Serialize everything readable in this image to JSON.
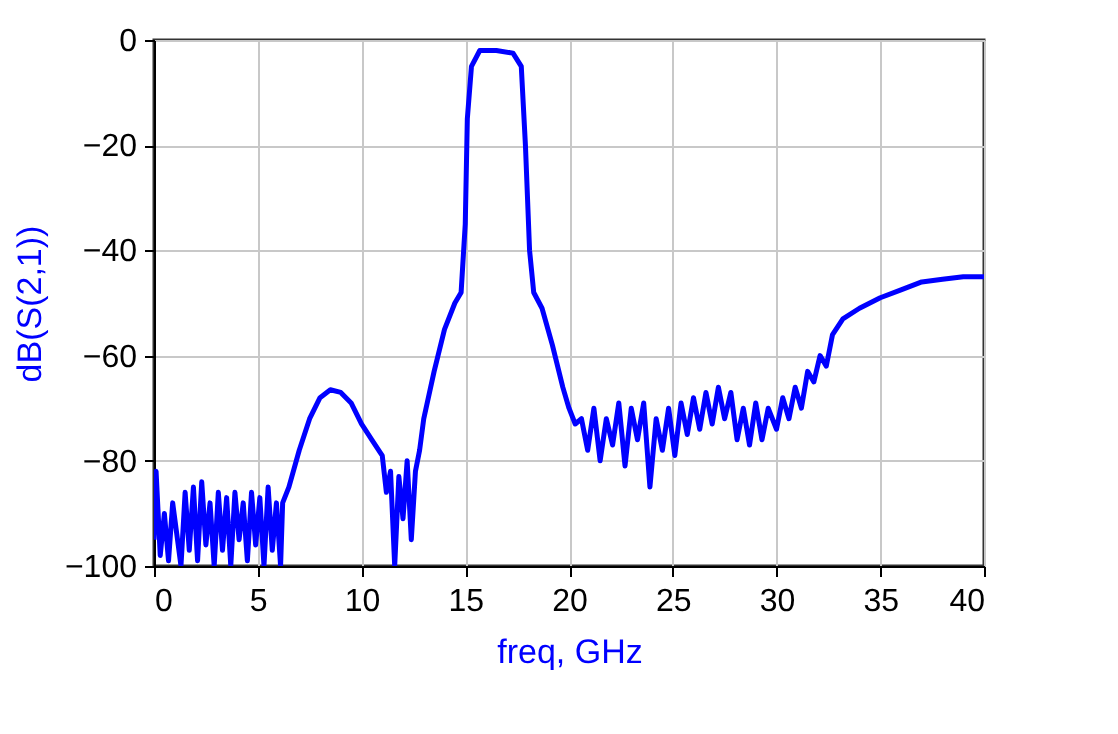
{
  "chart_data": {
    "type": "line",
    "xlabel": "freq, GHz",
    "ylabel": "dB(S(2,1))",
    "xlim": [
      0,
      40
    ],
    "ylim": [
      -100,
      0
    ],
    "xticks": [
      0,
      5,
      10,
      15,
      20,
      25,
      30,
      35,
      40
    ],
    "yticks": [
      -100,
      -80,
      -60,
      -40,
      -20,
      0
    ],
    "grid": true,
    "x": [
      0,
      0.1,
      0.3,
      0.5,
      0.7,
      0.9,
      1.1,
      1.3,
      1.5,
      1.7,
      1.9,
      2.1,
      2.3,
      2.5,
      2.7,
      2.9,
      3.1,
      3.3,
      3.5,
      3.7,
      3.9,
      4.1,
      4.3,
      4.5,
      4.7,
      4.9,
      5.1,
      5.3,
      5.5,
      5.7,
      5.9,
      6.1,
      6.2,
      6.5,
      7,
      7.5,
      8,
      8.5,
      9,
      9.5,
      10,
      10.5,
      11,
      11.2,
      11.4,
      11.6,
      11.8,
      12,
      12.2,
      12.4,
      12.6,
      12.8,
      13,
      13.5,
      14,
      14.5,
      14.8,
      15,
      15.1,
      15.3,
      15.7,
      16.5,
      17.3,
      17.7,
      17.9,
      18.1,
      18.3,
      18.7,
      19.2,
      19.7,
      20,
      20.3,
      20.6,
      20.9,
      21.2,
      21.5,
      21.8,
      22.1,
      22.4,
      22.7,
      23,
      23.3,
      23.6,
      23.9,
      24.2,
      24.5,
      24.8,
      25.1,
      25.4,
      25.7,
      26,
      26.3,
      26.6,
      26.9,
      27.2,
      27.5,
      27.8,
      28.1,
      28.4,
      28.7,
      29,
      29.3,
      29.6,
      30,
      30.3,
      30.6,
      30.9,
      31.2,
      31.5,
      31.8,
      32.1,
      32.4,
      32.7,
      33.2,
      34,
      35,
      36,
      37,
      38,
      39,
      40
    ],
    "series": [
      {
        "color": "#0000ff",
        "values": [
          -95,
          -82,
          -98,
          -90,
          -99,
          -88,
          -94,
          -100,
          -86,
          -97,
          -85,
          -99,
          -84,
          -96,
          -88,
          -100,
          -86,
          -97,
          -87,
          -100,
          -86,
          -95,
          -88,
          -99,
          -86,
          -96,
          -87,
          -100,
          -85,
          -97,
          -88,
          -100,
          -88,
          -85,
          -78,
          -72,
          -68,
          -66.5,
          -67,
          -69,
          -73,
          -76,
          -79,
          -86,
          -82,
          -100,
          -83,
          -91,
          -80,
          -95,
          -82,
          -78,
          -72,
          -63,
          -55,
          -50,
          -48,
          -35,
          -15,
          -5,
          -2,
          -2,
          -2.5,
          -5,
          -20,
          -40,
          -48,
          -51,
          -58,
          -66,
          -70,
          -73,
          -72,
          -78,
          -70,
          -80,
          -72,
          -77,
          -69,
          -81,
          -70,
          -76,
          -69,
          -85,
          -72,
          -78,
          -70,
          -79,
          -69,
          -75,
          -68,
          -74,
          -67,
          -73,
          -66,
          -72,
          -67,
          -76,
          -70,
          -77,
          -69,
          -76,
          -70,
          -74,
          -68,
          -72,
          -66,
          -70,
          -63,
          -65,
          -60,
          -62,
          -56,
          -53,
          -51,
          -49,
          -47.5,
          -46,
          -45.5,
          -45,
          -45
        ]
      }
    ]
  }
}
